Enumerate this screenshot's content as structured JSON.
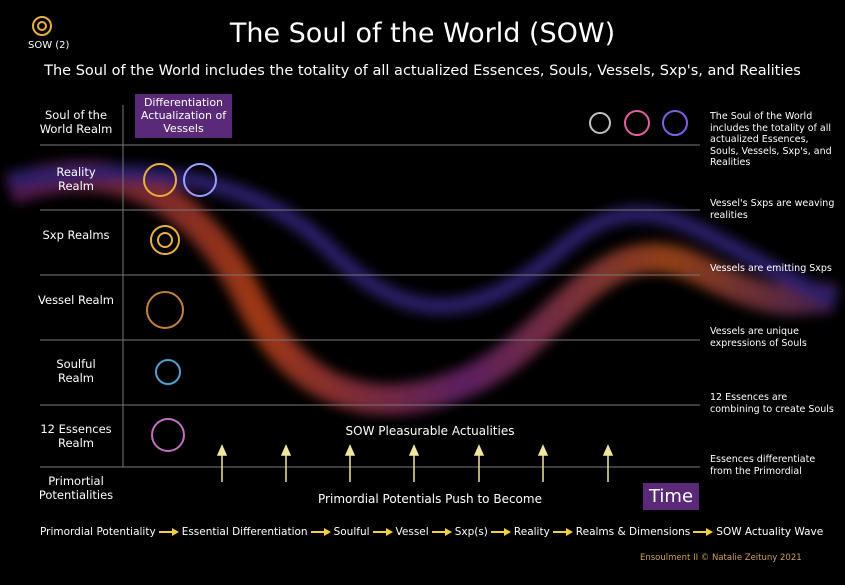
{
  "logo_label": "SOW (2)",
  "title": "The Soul of the World (SOW)",
  "subtitle": "The Soul of the World includes the totality of all actualized Essences, Souls, Vessels, Sxp's, and Realities",
  "badge": "Differentiation Actualization of Vessels",
  "realms": [
    "Soul of the World Realm",
    "Reality Realm",
    "Sxp Realms",
    "Vessel Realm",
    "Soulful Realm",
    "12 Essences Realm",
    "Primortial Potentialities"
  ],
  "notes": [
    "The Soul of the World includes the totality of all actualized Essences, Souls, Vessels, Sxp's, and Realities",
    "Vessel's Sxps are weaving realities",
    "Vessels are emitting Sxps",
    "Vessels are unique expressions of Souls",
    "12 Essences are combining to create Souls",
    "Essences differentiate from the Primordial"
  ],
  "center_upper": "SOW Pleasurable Actualities",
  "center_lower": "Primordial Potentials Push to Become",
  "time_label": "Time",
  "flow": [
    "Primordial Potentiality",
    "Essential Differentiation",
    "Soulful",
    "Vessel",
    "Sxp(s)",
    "Reality",
    "Realms & Dimensions",
    "SOW Actuality Wave"
  ],
  "credit": "Ensoulment II © Natalie Zeituny 2021"
}
